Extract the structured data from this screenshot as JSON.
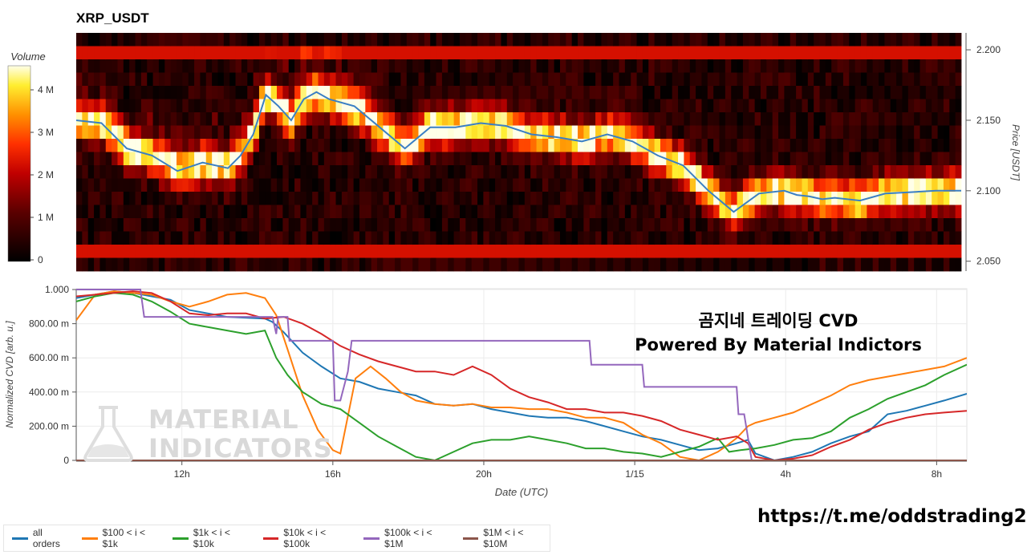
{
  "heatmap": {
    "title": "XRP_USDT",
    "colorbar": {
      "title": "Volume",
      "ticks": [
        "0",
        "1 M",
        "2 M",
        "3 M",
        "4 M"
      ]
    },
    "y_axis": {
      "label": "Price [USDT]",
      "ticks": [
        "2.050",
        "2.100",
        "2.150",
        "2.200"
      ],
      "range": [
        2.043,
        2.212
      ]
    }
  },
  "cvd": {
    "y_axis": {
      "label": "Normalized CVD [arb. u.]",
      "ticks": [
        "0",
        "200.00 m",
        "400.00 m",
        "600.00 m",
        "800.00 m",
        "1.000"
      ]
    },
    "x_axis": {
      "label": "Date (UTC)",
      "ticks": [
        "12h",
        "16h",
        "20h",
        "1/15",
        "4h",
        "8h"
      ]
    }
  },
  "legend": [
    {
      "label": "all orders",
      "color": "#1f77b4"
    },
    {
      "label": "$100 < i < $1k",
      "color": "#ff7f0e"
    },
    {
      "label": "$1k < i < $10k",
      "color": "#2ca02c"
    },
    {
      "label": "$10k < i < $100k",
      "color": "#d62728"
    },
    {
      "label": "$100k < i < $1M",
      "color": "#9467bd"
    },
    {
      "label": "$1M < i < $10M",
      "color": "#8c564b"
    }
  ],
  "watermark": {
    "line1": "MATERIAL",
    "line2": "INDICATORS"
  },
  "annotation": {
    "line1": "곰지네 트레이딩 CVD",
    "line2": "Powered By Material Indictors"
  },
  "link": "https://t.me/oddstrading2",
  "chart_data": [
    {
      "type": "heatmap",
      "title": "XRP_USDT",
      "ylabel": "Price [USDT]",
      "ylim": [
        2.043,
        2.212
      ],
      "colorbar_label": "Volume",
      "colorbar_range": [
        0,
        4600000
      ],
      "price_line": {
        "color": "#3a7fc4",
        "t_hours": [
          0,
          1,
          2,
          3,
          4,
          5,
          6,
          6.5,
          7,
          7.5,
          8,
          8.5,
          9,
          9.5,
          10,
          11,
          12,
          13,
          14,
          15,
          16,
          17,
          18,
          19,
          20,
          21,
          22,
          23,
          24,
          25,
          26,
          27,
          28,
          28.5,
          29,
          29.5,
          30,
          31,
          32,
          33,
          34,
          35
        ],
        "price": [
          2.15,
          2.148,
          2.13,
          2.125,
          2.114,
          2.12,
          2.116,
          2.125,
          2.14,
          2.168,
          2.16,
          2.15,
          2.165,
          2.17,
          2.165,
          2.16,
          2.145,
          2.13,
          2.145,
          2.145,
          2.148,
          2.146,
          2.14,
          2.138,
          2.135,
          2.14,
          2.135,
          2.125,
          2.118,
          2.1,
          2.085,
          2.098,
          2.1,
          2.097,
          2.096,
          2.094,
          2.095,
          2.093,
          2.098,
          2.099,
          2.1,
          2.1
        ]
      }
    },
    {
      "type": "line",
      "xlabel": "Date (UTC)",
      "ylabel": "Normalized CVD [arb. u.]",
      "ylim": [
        0,
        1
      ],
      "x_ticks": [
        "12h",
        "16h",
        "20h",
        "1/15",
        "4h",
        "8h"
      ],
      "x_tick_hours": [
        2.8,
        6.8,
        10.8,
        14.8,
        18.8,
        22.8
      ],
      "x_range_hours": [
        0,
        23.6
      ],
      "series": [
        {
          "name": "all orders",
          "color": "#1f77b4",
          "x": [
            0,
            0.5,
            1,
            1.5,
            2,
            2.5,
            3,
            4,
            5,
            5.2,
            5.5,
            6,
            6.5,
            7,
            7.5,
            8,
            8.5,
            9,
            9.5,
            10,
            10.5,
            11,
            11.5,
            12,
            12.5,
            13,
            13.5,
            14,
            14.5,
            15,
            15.5,
            16,
            16.5,
            17,
            17.5,
            17.8,
            18,
            18.5,
            19,
            19.5,
            20,
            20.5,
            21,
            21.5,
            22,
            22.5,
            23,
            23.6
          ],
          "y": [
            0.95,
            0.97,
            0.99,
            0.98,
            0.96,
            0.94,
            0.88,
            0.84,
            0.83,
            0.81,
            0.75,
            0.63,
            0.55,
            0.48,
            0.46,
            0.42,
            0.4,
            0.38,
            0.33,
            0.32,
            0.33,
            0.3,
            0.28,
            0.26,
            0.25,
            0.25,
            0.23,
            0.2,
            0.17,
            0.14,
            0.12,
            0.09,
            0.06,
            0.07,
            0.1,
            0.12,
            0.04,
            0.0,
            0.02,
            0.05,
            0.1,
            0.14,
            0.17,
            0.27,
            0.29,
            0.32,
            0.35,
            0.39
          ]
        },
        {
          "name": "$100 < i < $1k",
          "color": "#ff7f0e",
          "x": [
            0,
            0.5,
            1,
            1.5,
            2,
            2.5,
            3,
            3.5,
            4,
            4.5,
            5,
            5.3,
            5.6,
            6,
            6.4,
            6.8,
            7,
            7.4,
            7.8,
            8.2,
            8.6,
            9,
            9.5,
            10,
            10.5,
            11,
            11.5,
            12,
            12.5,
            13,
            13.5,
            14,
            14.5,
            15,
            15.5,
            16,
            16.5,
            17,
            17.2,
            17.5,
            17.8,
            18,
            18.5,
            19,
            19.5,
            20,
            20.5,
            21,
            21.5,
            22,
            22.5,
            23,
            23.6
          ],
          "y": [
            0.82,
            0.97,
            0.99,
            0.98,
            0.97,
            0.93,
            0.9,
            0.93,
            0.97,
            0.98,
            0.95,
            0.85,
            0.65,
            0.38,
            0.18,
            0.06,
            0.04,
            0.48,
            0.55,
            0.48,
            0.4,
            0.35,
            0.33,
            0.32,
            0.33,
            0.31,
            0.31,
            0.3,
            0.3,
            0.28,
            0.25,
            0.25,
            0.22,
            0.15,
            0.1,
            0.02,
            0.0,
            0.05,
            0.08,
            0.13,
            0.2,
            0.22,
            0.25,
            0.28,
            0.33,
            0.38,
            0.44,
            0.47,
            0.49,
            0.51,
            0.53,
            0.55,
            0.6
          ]
        },
        {
          "name": "$1k < i < $10k",
          "color": "#2ca02c",
          "x": [
            0,
            0.5,
            1,
            1.5,
            2,
            2.5,
            3,
            3.5,
            4,
            4.5,
            5,
            5.3,
            5.6,
            6,
            6.5,
            7,
            7.5,
            8,
            8.5,
            9,
            9.5,
            10,
            10.5,
            11,
            11.5,
            12,
            12.5,
            13,
            13.5,
            14,
            14.5,
            15,
            15.5,
            16,
            16.5,
            17,
            17.3,
            17.6,
            18,
            18.5,
            19,
            19.5,
            20,
            20.5,
            21,
            21.5,
            22,
            22.5,
            23,
            23.6
          ],
          "y": [
            0.93,
            0.96,
            0.98,
            0.97,
            0.93,
            0.87,
            0.8,
            0.78,
            0.76,
            0.74,
            0.76,
            0.6,
            0.5,
            0.4,
            0.33,
            0.3,
            0.22,
            0.14,
            0.08,
            0.02,
            0.0,
            0.05,
            0.1,
            0.12,
            0.12,
            0.14,
            0.12,
            0.1,
            0.07,
            0.07,
            0.05,
            0.04,
            0.02,
            0.05,
            0.08,
            0.13,
            0.05,
            0.06,
            0.07,
            0.09,
            0.12,
            0.13,
            0.17,
            0.25,
            0.3,
            0.36,
            0.4,
            0.44,
            0.5,
            0.56
          ]
        },
        {
          "name": "$10k < i < $100k",
          "color": "#d62728",
          "x": [
            0,
            0.5,
            1,
            1.5,
            2,
            2.5,
            3,
            3.5,
            4,
            4.5,
            5,
            5.5,
            6,
            6.5,
            7,
            7.5,
            8,
            8.5,
            9,
            9.5,
            10,
            10.5,
            11,
            11.5,
            12,
            12.5,
            13,
            13.5,
            14,
            14.5,
            15,
            15.5,
            16,
            16.5,
            17,
            17.5,
            17.8,
            18,
            18.5,
            19,
            19.5,
            20,
            20.5,
            21,
            21.5,
            22,
            22.5,
            23,
            23.6
          ],
          "y": [
            0.96,
            0.97,
            0.98,
            0.99,
            0.98,
            0.93,
            0.86,
            0.85,
            0.86,
            0.86,
            0.83,
            0.84,
            0.8,
            0.74,
            0.67,
            0.62,
            0.58,
            0.55,
            0.52,
            0.52,
            0.5,
            0.55,
            0.5,
            0.42,
            0.37,
            0.34,
            0.3,
            0.3,
            0.28,
            0.28,
            0.26,
            0.23,
            0.18,
            0.15,
            0.12,
            0.14,
            0.1,
            0.02,
            0.0,
            0.01,
            0.03,
            0.08,
            0.12,
            0.18,
            0.22,
            0.25,
            0.27,
            0.28,
            0.29
          ]
        },
        {
          "name": "$100k < i < $1M",
          "color": "#9467bd",
          "x": [
            0,
            1.7,
            1.8,
            5.2,
            5.3,
            5.35,
            5.6,
            5.65,
            6.8,
            6.85,
            7.0,
            7.2,
            7.3,
            13.6,
            13.65,
            15.0,
            15.05,
            17.5,
            17.55,
            17.7,
            17.9,
            18.0,
            20.0,
            23.6
          ],
          "y": [
            1.0,
            1.0,
            0.84,
            0.84,
            0.74,
            0.84,
            0.84,
            0.7,
            0.7,
            0.35,
            0.35,
            0.52,
            0.7,
            0.7,
            0.56,
            0.56,
            0.43,
            0.43,
            0.27,
            0.27,
            0.0,
            0.0,
            0.0,
            0.0
          ]
        },
        {
          "name": "$1M < i < $10M",
          "color": "#8c564b",
          "x": [
            0,
            23.6
          ],
          "y": [
            0,
            0
          ]
        }
      ]
    }
  ]
}
